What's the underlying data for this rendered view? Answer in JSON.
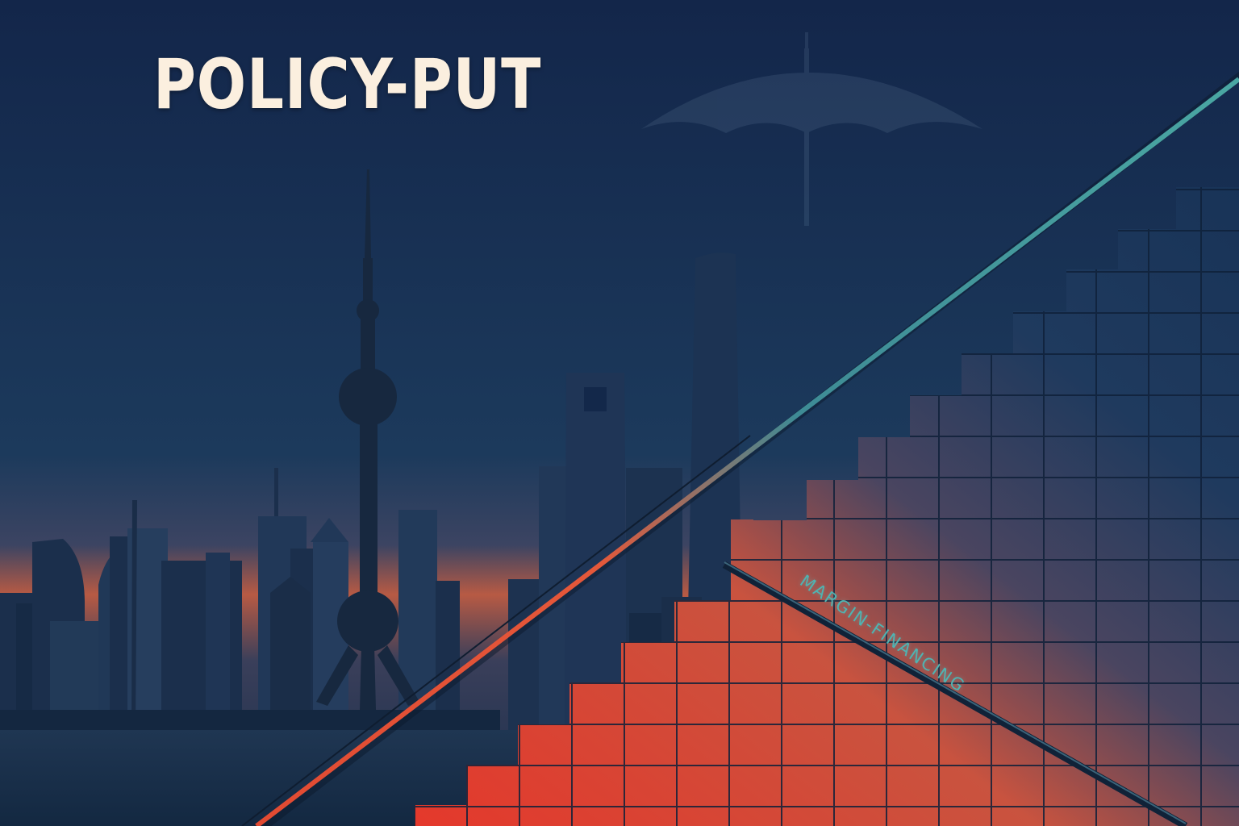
{
  "headline": {
    "text": "POLICY-PUT"
  },
  "overlay_label": {
    "text": "MARGIN-FINANCING"
  },
  "colors": {
    "sky_top": "#13264a",
    "sky_horizon": "#b75a44",
    "headline": "#fbefdf",
    "label": "#4fb4b2",
    "bar_warm": "#e5382b",
    "bar_cool": "#1b3a5e",
    "trend_warm": "#e24a32",
    "trend_cool": "#4aa7a3"
  },
  "icons": [
    "umbrella-icon"
  ],
  "staircase": {
    "relative_step_heights": [
      0.15,
      0.35,
      0.55,
      0.75,
      0.9,
      1.0
    ]
  }
}
